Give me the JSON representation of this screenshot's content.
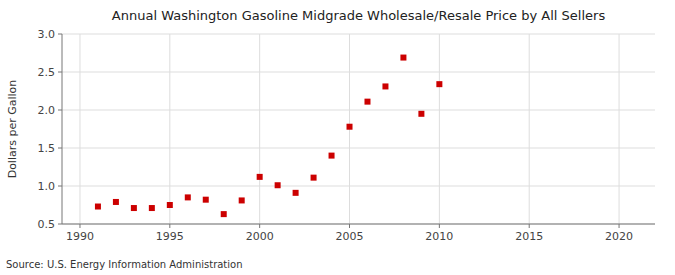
{
  "chart_data": {
    "type": "scatter",
    "title": "Annual Washington Gasoline Midgrade Wholesale/Resale Price by All Sellers",
    "ylabel": "Dollars per Gallon",
    "source": "Source: U.S. Energy Information Administration",
    "x": [
      1991,
      1992,
      1993,
      1994,
      1995,
      1996,
      1997,
      1998,
      1999,
      2000,
      2001,
      2002,
      2003,
      2004,
      2005,
      2006,
      2007,
      2008,
      2009,
      2010
    ],
    "values": [
      0.73,
      0.79,
      0.71,
      0.71,
      0.75,
      0.85,
      0.82,
      0.63,
      0.81,
      1.12,
      1.01,
      0.91,
      1.11,
      1.4,
      1.78,
      2.11,
      2.31,
      2.69,
      1.95,
      2.34
    ],
    "color": "#cc0000",
    "marker": "square",
    "xlim": [
      1989,
      2022
    ],
    "ylim": [
      0.5,
      3.0
    ],
    "xticks": [
      1990,
      1995,
      2000,
      2005,
      2010,
      2015,
      2020
    ],
    "yticks": [
      0.5,
      {
        "value": 1.0,
        "label": "1.0"
      },
      1.5,
      {
        "value": 2.0,
        "label": "2.0"
      },
      2.5,
      {
        "value": 3.0,
        "label": "3.0"
      }
    ],
    "grid": true
  }
}
